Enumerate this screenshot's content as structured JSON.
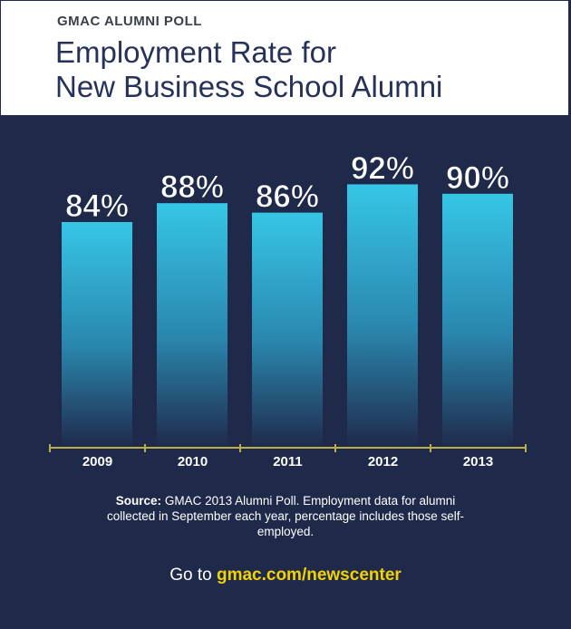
{
  "header": {
    "kicker": "GMAC ALUMNI POLL",
    "title_line1": "Employment Rate for",
    "title_line2": "New Business School Alumni"
  },
  "colors": {
    "background": "#1f2a4b",
    "bar_top": "#36c6e6",
    "bar_bottom": "#1f2a4b",
    "axis": "#b9b04a",
    "link": "#f2d200"
  },
  "chart_data": {
    "type": "bar",
    "categories": [
      "2009",
      "2010",
      "2011",
      "2012",
      "2013"
    ],
    "values": [
      84,
      88,
      86,
      92,
      90
    ],
    "data_labels": [
      "84%",
      "88%",
      "86%",
      "92%",
      "90%"
    ],
    "title": "Employment Rate for New Business School Alumni",
    "xlabel": "",
    "ylabel": "",
    "grid": false,
    "legend": "none"
  },
  "source": {
    "label": "Source:",
    "text": "GMAC 2013 Alumni Poll. Employment data for alumni collected in September each year, percentage includes those self-employed."
  },
  "footer": {
    "prefix": "Go to",
    "link": "gmac.com/newscenter"
  }
}
